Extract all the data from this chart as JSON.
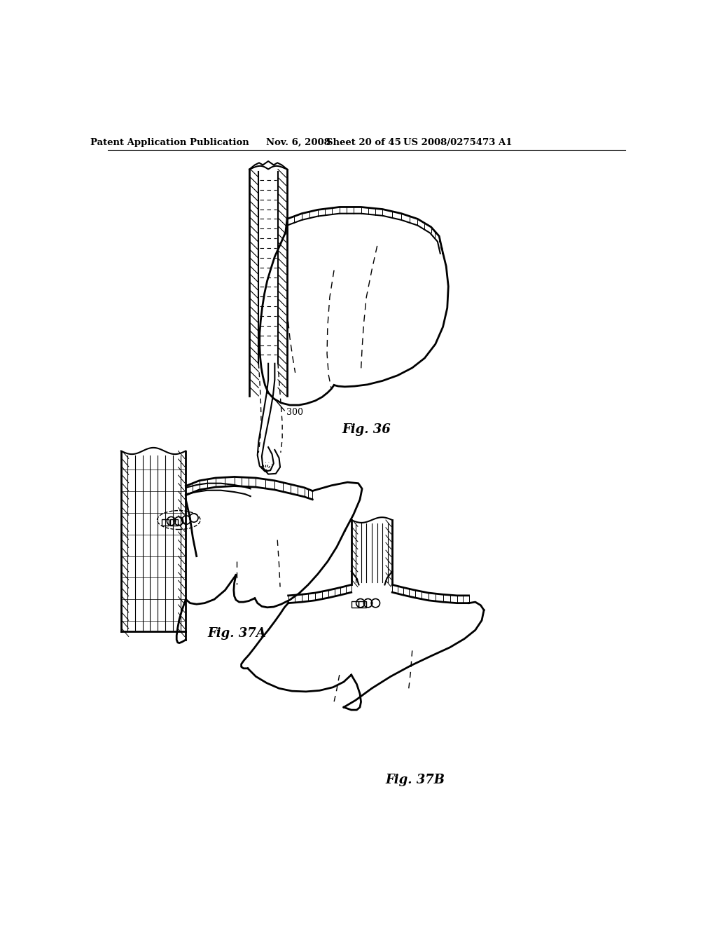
{
  "background_color": "#ffffff",
  "header_text": "Patent Application Publication",
  "header_date": "Nov. 6, 2008",
  "header_sheet": "Sheet 20 of 45",
  "header_patent": "US 2008/0275473 A1",
  "fig36_label": "Fig. 36",
  "fig36_ref": "300",
  "fig37a_label": "Fig. 37A",
  "fig37b_label": "Fig. 37B",
  "line_color": "#000000"
}
